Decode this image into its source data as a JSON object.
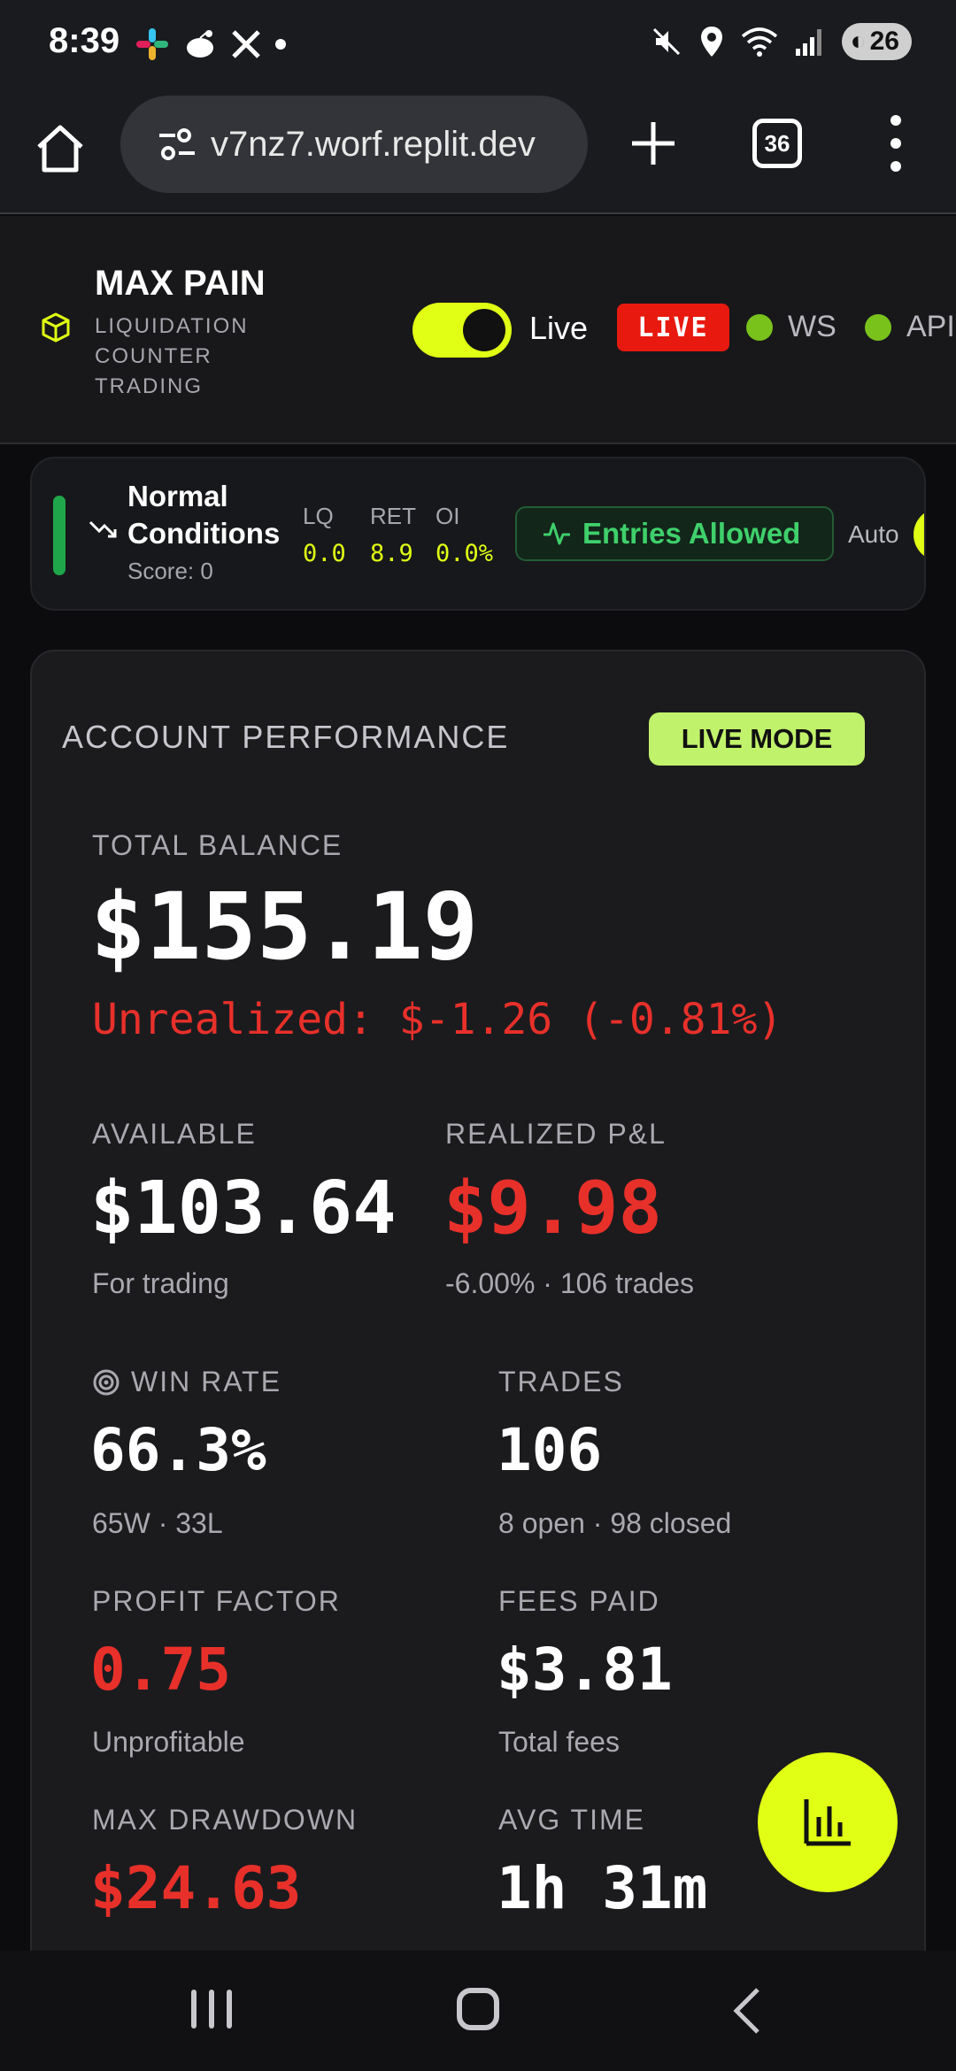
{
  "status_bar": {
    "time": "8:39",
    "battery": "26",
    "app_icons": [
      "slack-icon",
      "reddit-icon",
      "x-icon",
      "more-dot"
    ]
  },
  "browser": {
    "url": "v7nz7.worf.replit.dev",
    "tab_count": "36"
  },
  "header": {
    "title": "MAX PAIN",
    "subtitle": "LIQUIDATION COUNTER TRADING",
    "toggle_label": "Live",
    "live_badge": "LIVE",
    "ws_label": "WS",
    "api_label": "API",
    "accent_color": "#e0ff14"
  },
  "conditions": {
    "title_line1": "Normal",
    "title_line2": "Conditions",
    "score": "Score: 0",
    "metrics": [
      {
        "label": "LQ",
        "value": "0.0"
      },
      {
        "label": "RET",
        "value": "8.9"
      },
      {
        "label": "OI",
        "value": "0.0%"
      }
    ],
    "entries": "Entries Allowed",
    "auto": "Auto"
  },
  "performance": {
    "title": "ACCOUNT PERFORMANCE",
    "mode_badge": "LIVE MODE",
    "total_balance_label": "TOTAL BALANCE",
    "total_balance": "$155.19",
    "unrealized": "Unrealized: $-1.26 (-0.81%)",
    "available_label": "AVAILABLE",
    "available": "$103.64",
    "available_sub": "For trading",
    "realized_label": "REALIZED P&L",
    "realized": "$9.98",
    "realized_sub": "-6.00% · 106 trades",
    "win_rate_label": "WIN RATE",
    "win_rate": "66.3%",
    "win_rate_sub": "65W · 33L",
    "trades_label": "TRADES",
    "trades": "106",
    "trades_sub": "8 open · 98 closed",
    "profit_factor_label": "PROFIT FACTOR",
    "profit_factor": "0.75",
    "profit_factor_sub": "Unprofitable",
    "fees_label": "FEES PAID",
    "fees": "$3.81",
    "fees_sub": "Total fees",
    "drawdown_label": "MAX DRAWDOWN",
    "drawdown": "$24.63",
    "avg_time_label": "AVG TIME",
    "avg_time": "1h 31m"
  }
}
